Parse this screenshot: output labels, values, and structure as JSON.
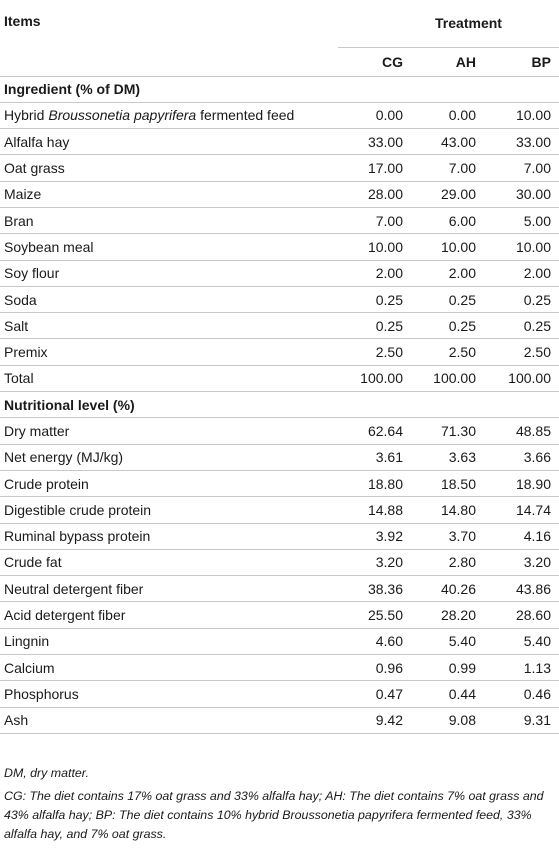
{
  "header": {
    "items_label": "Items",
    "treatment_label": "Treatment",
    "groups": [
      "CG",
      "AH",
      "BP"
    ]
  },
  "sections": [
    {
      "title": "Ingredient (% of DM)",
      "rows": [
        {
          "label_pre": "Hybrid ",
          "label_italic": "Broussonetia papyrifera",
          "label_post": " fermented feed",
          "values": [
            "0.00",
            "0.00",
            "10.00"
          ]
        },
        {
          "label": "Alfalfa hay",
          "values": [
            "33.00",
            "43.00",
            "33.00"
          ]
        },
        {
          "label": "Oat grass",
          "values": [
            "17.00",
            "7.00",
            "7.00"
          ]
        },
        {
          "label": "Maize",
          "values": [
            "28.00",
            "29.00",
            "30.00"
          ]
        },
        {
          "label": "Bran",
          "values": [
            "7.00",
            "6.00",
            "5.00"
          ]
        },
        {
          "label": "Soybean meal",
          "values": [
            "10.00",
            "10.00",
            "10.00"
          ]
        },
        {
          "label": "Soy flour",
          "values": [
            "2.00",
            "2.00",
            "2.00"
          ]
        },
        {
          "label": "Soda",
          "values": [
            "0.25",
            "0.25",
            "0.25"
          ]
        },
        {
          "label": "Salt",
          "values": [
            "0.25",
            "0.25",
            "0.25"
          ]
        },
        {
          "label": "Premix",
          "values": [
            "2.50",
            "2.50",
            "2.50"
          ]
        },
        {
          "label": "Total",
          "values": [
            "100.00",
            "100.00",
            "100.00"
          ]
        }
      ]
    },
    {
      "title": "Nutritional level (%)",
      "rows": [
        {
          "label": "Dry matter",
          "values": [
            "62.64",
            "71.30",
            "48.85"
          ]
        },
        {
          "label": "Net energy (MJ/kg)",
          "values": [
            "3.61",
            "3.63",
            "3.66"
          ]
        },
        {
          "label": "Crude protein",
          "values": [
            "18.80",
            "18.50",
            "18.90"
          ]
        },
        {
          "label": "Digestible crude protein",
          "values": [
            "14.88",
            "14.80",
            "14.74"
          ]
        },
        {
          "label": "Ruminal bypass protein",
          "values": [
            "3.92",
            "3.70",
            "4.16"
          ]
        },
        {
          "label": "Crude fat",
          "values": [
            "3.20",
            "2.80",
            "3.20"
          ]
        },
        {
          "label": "Neutral detergent fiber",
          "values": [
            "38.36",
            "40.26",
            "43.86"
          ]
        },
        {
          "label": "Acid detergent fiber",
          "values": [
            "25.50",
            "28.20",
            "28.60"
          ]
        },
        {
          "label": "Lingnin",
          "values": [
            "4.60",
            "5.40",
            "5.40"
          ]
        },
        {
          "label": "Calcium",
          "values": [
            "0.96",
            "0.99",
            "1.13"
          ]
        },
        {
          "label": "Phosphorus",
          "values": [
            "0.47",
            "0.44",
            "0.46"
          ]
        },
        {
          "label": "Ash",
          "values": [
            "9.42",
            "9.08",
            "9.31"
          ]
        }
      ]
    }
  ],
  "notes": {
    "abbrev": "DM, dry matter.",
    "groups_pre": "CG: The diet contains 17% oat grass and 33% alfalfa hay; AH: The diet contains 7% oat grass and 43% alfalfa hay; BP: The diet contains 10% hybrid ",
    "groups_italic": "Broussonetia papyrifera",
    "groups_post": " fermented feed, 33% alfalfa hay, and 7% oat grass."
  }
}
